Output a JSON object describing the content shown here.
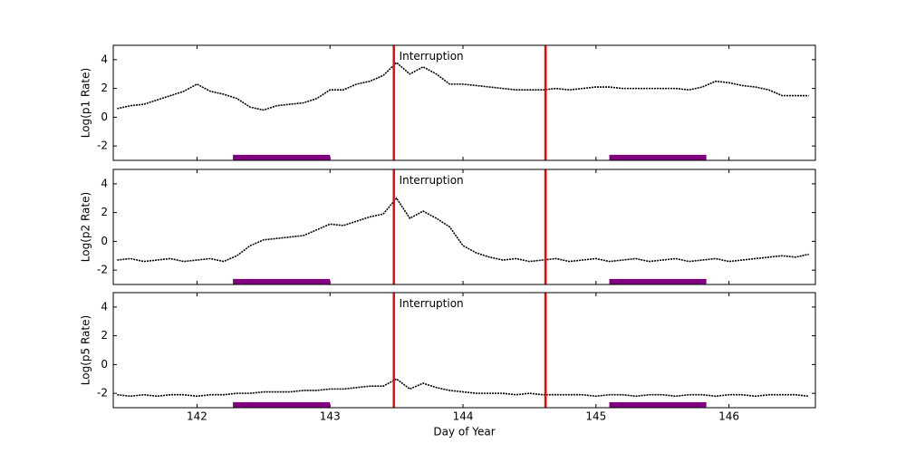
{
  "chart_data": [
    {
      "type": "line",
      "ylabel": "Log(p1 Rate)",
      "color": "#000000",
      "x": [
        141.4,
        141.5,
        141.6,
        141.7,
        141.8,
        141.9,
        142.0,
        142.1,
        142.2,
        142.3,
        142.4,
        142.5,
        142.6,
        142.7,
        142.8,
        142.9,
        143.0,
        143.1,
        143.2,
        143.3,
        143.4,
        143.5,
        143.6,
        143.7,
        143.8,
        143.9,
        144.0,
        144.1,
        144.2,
        144.3,
        144.4,
        144.5,
        144.6,
        144.7,
        144.8,
        144.9,
        145.0,
        145.1,
        145.2,
        145.3,
        145.4,
        145.5,
        145.6,
        145.7,
        145.8,
        145.9,
        146.0,
        146.1,
        146.2,
        146.3,
        146.4,
        146.5,
        146.6
      ],
      "values": [
        0.6,
        0.8,
        0.9,
        1.2,
        1.5,
        1.8,
        2.3,
        1.8,
        1.6,
        1.3,
        0.7,
        0.5,
        0.8,
        0.9,
        1.0,
        1.3,
        1.9,
        1.9,
        2.3,
        2.5,
        2.9,
        3.8,
        3.0,
        3.5,
        3.0,
        2.3,
        2.3,
        2.2,
        2.1,
        2.0,
        1.9,
        1.9,
        1.9,
        2.0,
        1.9,
        2.0,
        2.1,
        2.1,
        2.0,
        2.0,
        2.0,
        2.0,
        2.0,
        1.9,
        2.1,
        2.5,
        2.4,
        2.2,
        2.1,
        1.9,
        1.5,
        1.5,
        1.5
      ],
      "xlim": [
        141.37,
        146.65
      ],
      "ylim": [
        -3,
        5
      ],
      "yticks": [
        -2,
        0,
        2,
        4
      ],
      "xticks": [
        142,
        143,
        144,
        145,
        146
      ],
      "xticklabels": false,
      "vlines": [
        143.48,
        144.62
      ],
      "vline_color": "#ff0000",
      "bars": [
        {
          "x": [
            142.27,
            143.0
          ],
          "y": -2.8
        },
        {
          "x": [
            145.1,
            145.83
          ],
          "y": -2.8
        }
      ],
      "bar_color": "#800080",
      "annotation": {
        "text": "Interruption",
        "x": 143.52,
        "y": 4.2,
        "color": "#ff0000"
      }
    },
    {
      "type": "line",
      "ylabel": "Log(p2 Rate)",
      "color": "#000000",
      "x": [
        141.4,
        141.5,
        141.6,
        141.7,
        141.8,
        141.9,
        142.0,
        142.1,
        142.2,
        142.3,
        142.4,
        142.5,
        142.6,
        142.7,
        142.8,
        142.9,
        143.0,
        143.1,
        143.2,
        143.3,
        143.4,
        143.5,
        143.6,
        143.7,
        143.8,
        143.9,
        144.0,
        144.1,
        144.2,
        144.3,
        144.4,
        144.5,
        144.6,
        144.7,
        144.8,
        144.9,
        145.0,
        145.1,
        145.2,
        145.3,
        145.4,
        145.5,
        145.6,
        145.7,
        145.8,
        145.9,
        146.0,
        146.1,
        146.2,
        146.3,
        146.4,
        146.5,
        146.6
      ],
      "values": [
        -1.3,
        -1.2,
        -1.4,
        -1.3,
        -1.2,
        -1.4,
        -1.3,
        -1.2,
        -1.4,
        -1.0,
        -0.3,
        0.1,
        0.2,
        0.3,
        0.4,
        0.8,
        1.2,
        1.1,
        1.4,
        1.7,
        1.9,
        3.0,
        1.6,
        2.1,
        1.6,
        1.0,
        -0.3,
        -0.8,
        -1.1,
        -1.3,
        -1.2,
        -1.4,
        -1.3,
        -1.2,
        -1.4,
        -1.3,
        -1.2,
        -1.4,
        -1.3,
        -1.2,
        -1.4,
        -1.3,
        -1.2,
        -1.4,
        -1.3,
        -1.2,
        -1.4,
        -1.3,
        -1.2,
        -1.1,
        -1.0,
        -1.1,
        -0.9
      ],
      "xlim": [
        141.37,
        146.65
      ],
      "ylim": [
        -3,
        5
      ],
      "yticks": [
        -2,
        0,
        2,
        4
      ],
      "xticks": [
        142,
        143,
        144,
        145,
        146
      ],
      "xticklabels": false,
      "vlines": [
        143.48,
        144.62
      ],
      "vline_color": "#ff0000",
      "bars": [
        {
          "x": [
            142.27,
            143.0
          ],
          "y": -2.8
        },
        {
          "x": [
            145.1,
            145.83
          ],
          "y": -2.8
        }
      ],
      "bar_color": "#800080",
      "annotation": {
        "text": "Interruption",
        "x": 143.52,
        "y": 4.2,
        "color": "#ff0000"
      }
    },
    {
      "type": "line",
      "ylabel": "Log(p5 Rate)",
      "xlabel": "Day of Year",
      "color": "#000000",
      "x": [
        141.4,
        141.5,
        141.6,
        141.7,
        141.8,
        141.9,
        142.0,
        142.1,
        142.2,
        142.3,
        142.4,
        142.5,
        142.6,
        142.7,
        142.8,
        142.9,
        143.0,
        143.1,
        143.2,
        143.3,
        143.4,
        143.5,
        143.6,
        143.7,
        143.8,
        143.9,
        144.0,
        144.1,
        144.2,
        144.3,
        144.4,
        144.5,
        144.6,
        144.7,
        144.8,
        144.9,
        145.0,
        145.1,
        145.2,
        145.3,
        145.4,
        145.5,
        145.6,
        145.7,
        145.8,
        145.9,
        146.0,
        146.1,
        146.2,
        146.3,
        146.4,
        146.5,
        146.6
      ],
      "values": [
        -2.1,
        -2.2,
        -2.1,
        -2.2,
        -2.1,
        -2.1,
        -2.2,
        -2.1,
        -2.1,
        -2.0,
        -2.0,
        -1.9,
        -1.9,
        -1.9,
        -1.8,
        -1.8,
        -1.7,
        -1.7,
        -1.6,
        -1.5,
        -1.5,
        -1.0,
        -1.7,
        -1.3,
        -1.6,
        -1.8,
        -1.9,
        -2.0,
        -2.0,
        -2.0,
        -2.1,
        -2.0,
        -2.1,
        -2.1,
        -2.1,
        -2.1,
        -2.2,
        -2.1,
        -2.1,
        -2.2,
        -2.1,
        -2.1,
        -2.2,
        -2.1,
        -2.1,
        -2.2,
        -2.1,
        -2.1,
        -2.2,
        -2.1,
        -2.1,
        -2.1,
        -2.2
      ],
      "xlim": [
        141.37,
        146.65
      ],
      "ylim": [
        -3,
        5
      ],
      "yticks": [
        -2,
        0,
        2,
        4
      ],
      "xticks": [
        142,
        143,
        144,
        145,
        146
      ],
      "xticklabels": true,
      "vlines": [
        143.48,
        144.62
      ],
      "vline_color": "#ff0000",
      "bars": [
        {
          "x": [
            142.27,
            143.0
          ],
          "y": -2.8
        },
        {
          "x": [
            145.1,
            145.83
          ],
          "y": -2.8
        }
      ],
      "bar_color": "#800080",
      "annotation": {
        "text": "Interruption",
        "x": 143.52,
        "y": 4.2,
        "color": "#ff0000"
      }
    }
  ]
}
